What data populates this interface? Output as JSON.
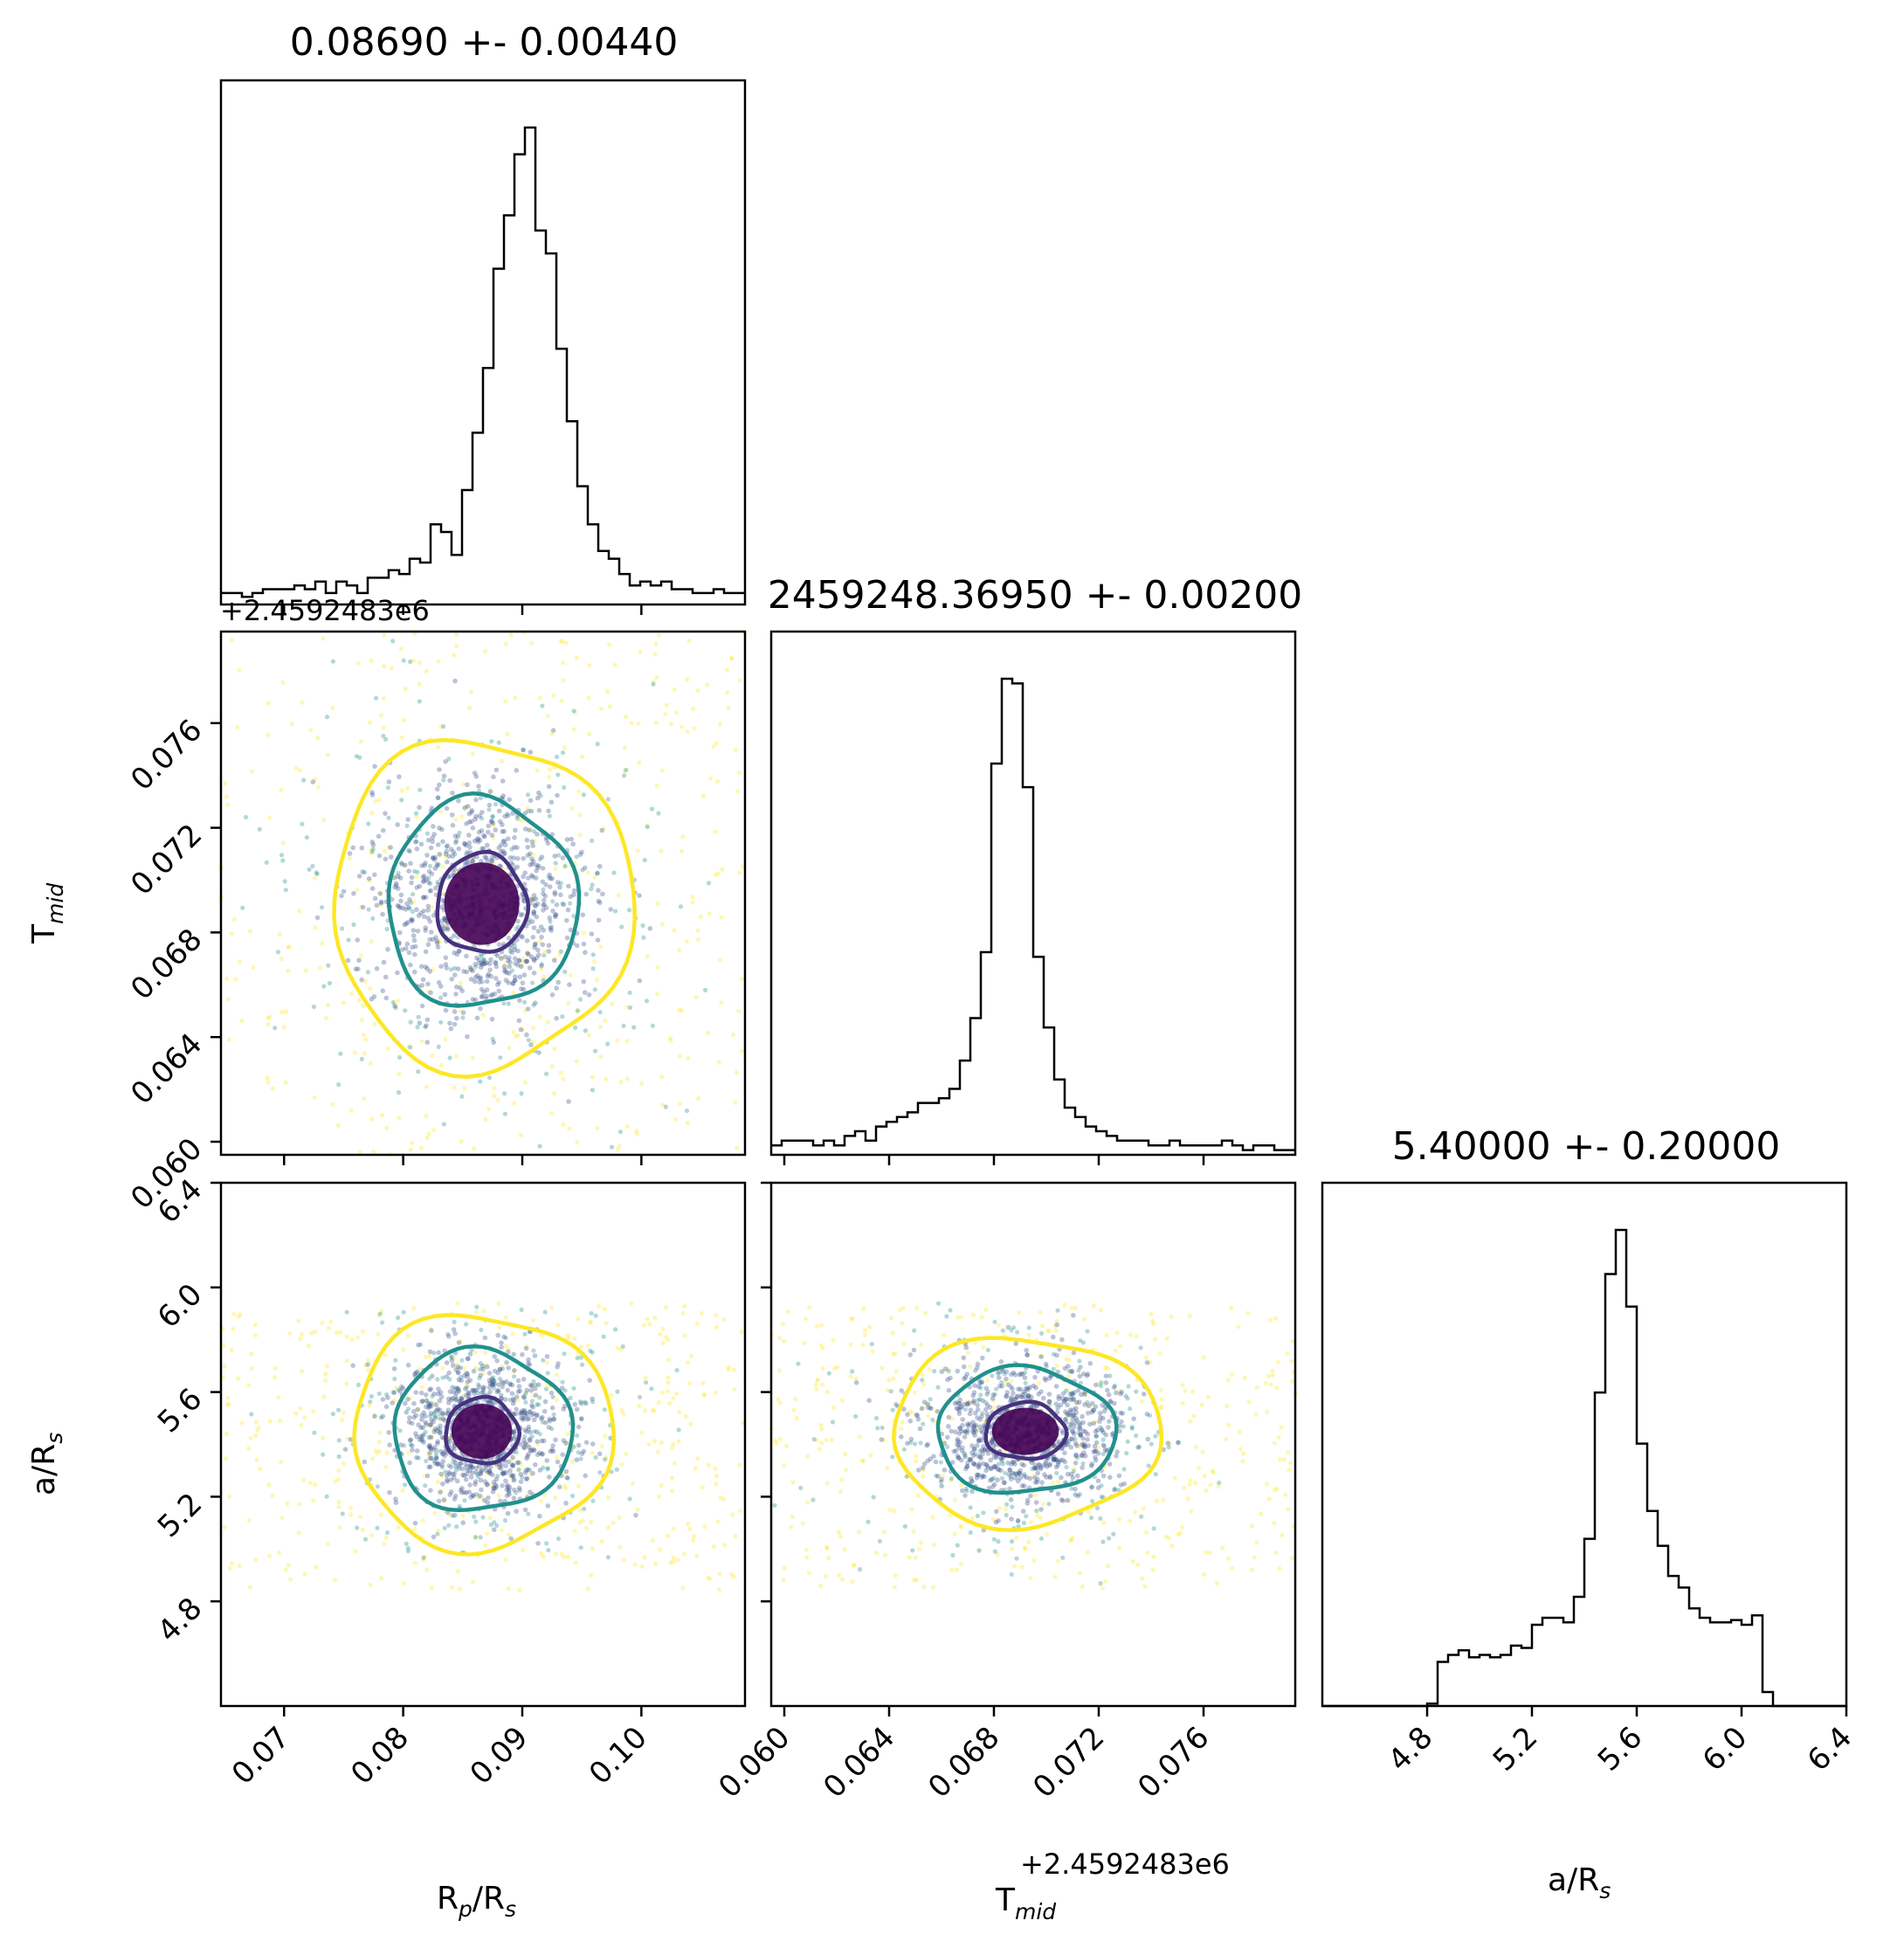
{
  "chart_data": {
    "type": "corner",
    "parameters": [
      "Rp/Rs",
      "Tmid",
      "a/Rs"
    ],
    "titles": {
      "rp_rs": "0.08690 +- 0.00440",
      "tmid": "2459248.36950 +- 0.00200",
      "a_rs": "5.40000 +- 0.20000"
    },
    "axis_labels": {
      "rp_rs": {
        "main": "R",
        "sub": "p",
        "rest": "/R",
        "sub2": "s"
      },
      "tmid": {
        "main": "T",
        "sub": "mid",
        "rest": "",
        "sub2": ""
      },
      "a_rs": {
        "main": "a/R",
        "sub": "s",
        "rest": "",
        "sub2": ""
      }
    },
    "offset_text": "+2.4592483e6",
    "ranges": {
      "rp_rs": [
        0.0647,
        0.1087
      ],
      "tmid": [
        0.0595,
        0.0795
      ],
      "a_rs": [
        4.4,
        6.4
      ]
    },
    "ticks": {
      "rp_rs": [
        "0.07",
        "0.08",
        "0.09",
        "0.10"
      ],
      "tmid": [
        "0.060",
        "0.064",
        "0.068",
        "0.072",
        "0.076"
      ],
      "a_rs": [
        "4.8",
        "5.2",
        "5.6",
        "6.0",
        "6.4"
      ]
    },
    "tick_values": {
      "rp_rs": [
        0.07,
        0.08,
        0.09,
        0.1
      ],
      "tmid": [
        0.06,
        0.064,
        0.068,
        0.072,
        0.076
      ],
      "a_rs": [
        4.8,
        5.2,
        5.6,
        6.0,
        6.4
      ]
    },
    "histograms": {
      "rp_rs": {
        "bin_width": 0.00088,
        "bin_start": 0.0647,
        "counts": [
          3,
          3,
          2,
          3,
          4,
          4,
          4,
          5,
          4,
          6,
          3,
          6,
          5,
          3,
          7,
          7,
          9,
          8,
          12,
          11,
          21,
          19,
          13,
          30,
          45,
          62,
          88,
          102,
          118,
          125,
          98,
          92,
          67,
          48,
          31,
          21,
          14,
          12,
          8,
          5,
          6,
          5,
          6,
          4,
          4,
          3,
          3,
          4,
          3,
          3
        ]
      },
      "tmid": {
        "bin_width": 0.0004,
        "bin_start": 0.0595,
        "counts": [
          2,
          3,
          3,
          3,
          2,
          3,
          2,
          4,
          5,
          3,
          6,
          7,
          8,
          9,
          11,
          11,
          12,
          14,
          20,
          29,
          43,
          83,
          101,
          100,
          78,
          42,
          27,
          16,
          10,
          8,
          6,
          5,
          4,
          3,
          3,
          3,
          2,
          2,
          3,
          2,
          2,
          2,
          2,
          3,
          2,
          1,
          2,
          2,
          1,
          1
        ]
      },
      "a_rs": {
        "bin_width": 0.04,
        "bin_start": 4.4,
        "counts": [
          0,
          0,
          0,
          0,
          0,
          0,
          0,
          0,
          0,
          0,
          1,
          19,
          22,
          24,
          21,
          22,
          21,
          22,
          26,
          25,
          35,
          38,
          38,
          36,
          47,
          72,
          135,
          186,
          205,
          172,
          113,
          84,
          69,
          56,
          51,
          42,
          38,
          36,
          36,
          37,
          35,
          39,
          6,
          0,
          0,
          0,
          0,
          0,
          0,
          0
        ]
      }
    },
    "joint": {
      "tmid_vs_rp_rs": {
        "center": [
          0.0866,
          0.0691
        ],
        "sigma": [
          0.0042,
          0.0021
        ],
        "contour_radii_sigma": [
          0.9,
          1.9,
          3.0
        ]
      },
      "a_rs_vs_rp_rs": {
        "center": [
          0.0866,
          5.45
        ],
        "sigma": [
          0.0034,
          0.14
        ],
        "contour_radii_sigma": [
          0.9,
          2.2,
          3.2
        ]
      },
      "a_rs_vs_tmid": {
        "center": [
          0.0692,
          5.45
        ],
        "sigma": [
          0.0017,
          0.12
        ],
        "contour_radii_sigma": [
          0.9,
          2.0,
          3.0
        ]
      }
    },
    "colors": {
      "inner_contour": "#46327e",
      "middle_contour": "#21908d",
      "outer_contour": "#fde725",
      "core": "#440154",
      "histogram": "#000000"
    },
    "grid": false,
    "legend": "none"
  }
}
